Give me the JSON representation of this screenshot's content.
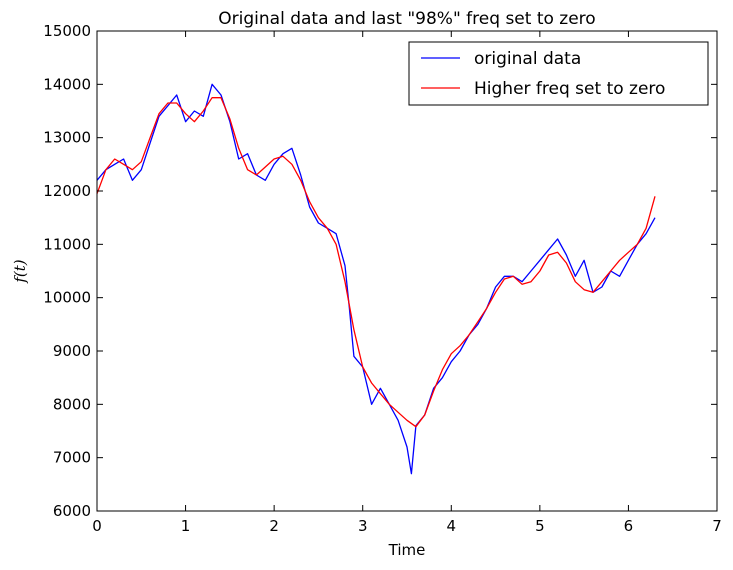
{
  "chart_data": {
    "type": "line",
    "title": "Original data and last \"98%\" freq set to zero",
    "xlabel": "Time",
    "ylabel": "f(t)",
    "xlim": [
      0,
      7
    ],
    "ylim": [
      6000,
      15000
    ],
    "xticks": [
      0,
      1,
      2,
      3,
      4,
      5,
      6,
      7
    ],
    "yticks": [
      6000,
      7000,
      8000,
      9000,
      10000,
      11000,
      12000,
      13000,
      14000,
      15000
    ],
    "grid": false,
    "legend_position": "top-right",
    "series": [
      {
        "name": "original data",
        "color": "#0000ff",
        "x": [
          0,
          0.1,
          0.2,
          0.3,
          0.4,
          0.5,
          0.6,
          0.7,
          0.8,
          0.9,
          1.0,
          1.1,
          1.2,
          1.3,
          1.4,
          1.5,
          1.6,
          1.7,
          1.8,
          1.9,
          2.0,
          2.1,
          2.2,
          2.3,
          2.4,
          2.5,
          2.6,
          2.7,
          2.8,
          2.85,
          2.9,
          3.0,
          3.1,
          3.2,
          3.3,
          3.4,
          3.5,
          3.55,
          3.6,
          3.7,
          3.8,
          3.9,
          4.0,
          4.1,
          4.2,
          4.3,
          4.4,
          4.5,
          4.6,
          4.7,
          4.8,
          4.9,
          5.0,
          5.1,
          5.2,
          5.3,
          5.4,
          5.5,
          5.6,
          5.7,
          5.8,
          5.9,
          6.0,
          6.1,
          6.2,
          6.3
        ],
        "y": [
          12200,
          12400,
          12500,
          12600,
          12200,
          12400,
          12900,
          13400,
          13600,
          13800,
          13300,
          13500,
          13400,
          14000,
          13800,
          13300,
          12600,
          12700,
          12300,
          12200,
          12500,
          12700,
          12800,
          12300,
          11700,
          11400,
          11300,
          11200,
          10600,
          9800,
          8900,
          8700,
          8000,
          8300,
          8000,
          7700,
          7200,
          6700,
          7600,
          7800,
          8300,
          8500,
          8800,
          9000,
          9300,
          9500,
          9800,
          10200,
          10400,
          10400,
          10300,
          10500,
          10700,
          10900,
          11100,
          10800,
          10400,
          10700,
          10100,
          10200,
          10500,
          10400,
          10700,
          11000,
          11200,
          11500
        ]
      },
      {
        "name": "Higher freq set to zero",
        "color": "#ff0000",
        "x": [
          0,
          0.1,
          0.2,
          0.3,
          0.4,
          0.5,
          0.6,
          0.7,
          0.8,
          0.9,
          1.0,
          1.1,
          1.2,
          1.3,
          1.4,
          1.5,
          1.6,
          1.7,
          1.8,
          1.9,
          2.0,
          2.1,
          2.2,
          2.3,
          2.4,
          2.5,
          2.6,
          2.7,
          2.8,
          2.9,
          3.0,
          3.1,
          3.2,
          3.3,
          3.4,
          3.5,
          3.6,
          3.7,
          3.8,
          3.9,
          4.0,
          4.1,
          4.2,
          4.3,
          4.4,
          4.5,
          4.6,
          4.7,
          4.8,
          4.9,
          5.0,
          5.1,
          5.2,
          5.3,
          5.4,
          5.5,
          5.6,
          5.7,
          5.8,
          5.9,
          6.0,
          6.1,
          6.2,
          6.3
        ],
        "y": [
          11950,
          12400,
          12600,
          12500,
          12400,
          12550,
          13000,
          13450,
          13650,
          13650,
          13450,
          13300,
          13500,
          13750,
          13750,
          13350,
          12800,
          12400,
          12300,
          12450,
          12600,
          12650,
          12500,
          12200,
          11800,
          11500,
          11300,
          11000,
          10300,
          9400,
          8700,
          8400,
          8200,
          8000,
          7850,
          7700,
          7580,
          7800,
          8250,
          8650,
          8950,
          9100,
          9300,
          9550,
          9800,
          10100,
          10350,
          10400,
          10250,
          10300,
          10500,
          10800,
          10850,
          10650,
          10300,
          10150,
          10100,
          10300,
          10500,
          10700,
          10850,
          11000,
          11300,
          11900
        ]
      }
    ]
  }
}
